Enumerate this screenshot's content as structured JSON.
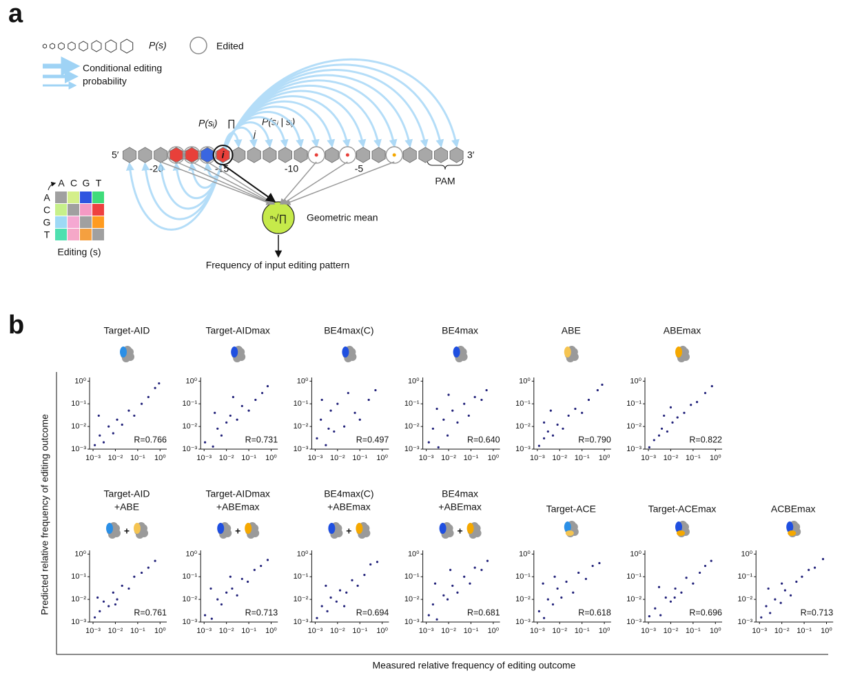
{
  "panel_a": {
    "label": "a",
    "legend_ps": "P(s)",
    "legend_edited": "Edited",
    "legend_arrow": [
      "Conditional editing",
      "probability"
    ],
    "formula": {
      "p_si": "P(sᵢ)",
      "prod": "∏",
      "prod_sub": "j",
      "p_sj_si": "P(sⱼ | sᵢ)"
    },
    "five_prime": "5′",
    "three_prime": "3′",
    "site": "i",
    "positions": [
      "-20",
      "-15",
      "-10",
      "-5"
    ],
    "pam": "PAM",
    "matrix": {
      "cols": [
        "A",
        "C",
        "G",
        "T"
      ],
      "rows": [
        "A",
        "C",
        "G",
        "T"
      ],
      "label": "Editing (s)"
    },
    "node_symbol": "ⁿ√∏",
    "node_label": "Geometric mean",
    "output": "Frequency of input editing pattern"
  },
  "panel_b": {
    "label": "b",
    "y_label": "Predicted  relative frequency of editing outcome",
    "x_label": "Measured relative frequency of editing outcome"
  },
  "chart_data": [
    {
      "type": "scatter",
      "title": [
        "Target-AID"
      ],
      "icons": [
        "#2b8fe6"
      ],
      "color": "#22227a",
      "log_scale": true,
      "annotation": "R=0.766",
      "x": [
        0.0012,
        0.002,
        0.003,
        0.005,
        0.008,
        0.012,
        0.02,
        0.04,
        0.07,
        0.15,
        0.3,
        0.6,
        0.9,
        0.0018
      ],
      "y": [
        0.0015,
        0.004,
        0.002,
        0.01,
        0.005,
        0.02,
        0.012,
        0.05,
        0.03,
        0.1,
        0.2,
        0.5,
        0.8,
        0.03
      ],
      "xlim": [
        0.0007,
        1.5
      ],
      "ylim": [
        0.001,
        1.1
      ],
      "xticks": [
        {
          "value": 0.001,
          "label": "10⁻³"
        },
        {
          "value": 0.01,
          "label": "10⁻²"
        },
        {
          "value": 0.1,
          "label": "10⁻¹"
        },
        {
          "value": 1,
          "label": "10⁰"
        }
      ],
      "yticks": [
        {
          "value": 0.001,
          "label": "10⁻³"
        },
        {
          "value": 0.01,
          "label": "10⁻²"
        },
        {
          "value": 0.1,
          "label": "10⁻¹"
        },
        {
          "value": 1,
          "label": "10⁰"
        }
      ]
    },
    {
      "type": "scatter",
      "title": [
        "Target-AIDmax"
      ],
      "icons": [
        "#1f4fe0"
      ],
      "color": "#22227a",
      "log_scale": true,
      "annotation": "R=0.731",
      "x": [
        0.0011,
        0.0025,
        0.004,
        0.006,
        0.01,
        0.015,
        0.03,
        0.05,
        0.1,
        0.2,
        0.4,
        0.7,
        0.003,
        0.02
      ],
      "y": [
        0.002,
        0.0013,
        0.008,
        0.004,
        0.015,
        0.03,
        0.02,
        0.08,
        0.05,
        0.15,
        0.3,
        0.6,
        0.04,
        0.2
      ],
      "xlim": [
        0.0007,
        1.5
      ],
      "ylim": [
        0.001,
        1.1
      ],
      "xticks": [
        {
          "value": 0.001,
          "label": "10⁻³"
        },
        {
          "value": 0.01,
          "label": "10⁻²"
        },
        {
          "value": 0.1,
          "label": "10⁻¹"
        },
        {
          "value": 1,
          "label": "10⁰"
        }
      ],
      "yticks": [
        {
          "value": 0.001,
          "label": "10⁻³"
        },
        {
          "value": 0.01,
          "label": "10⁻²"
        },
        {
          "value": 0.1,
          "label": "10⁻¹"
        },
        {
          "value": 1,
          "label": "10⁰"
        }
      ]
    },
    {
      "type": "scatter",
      "title": [
        "BE4max(C)"
      ],
      "icons": [
        "#1f4fe0"
      ],
      "color": "#22227a",
      "log_scale": true,
      "annotation": "R=0.497",
      "x": [
        0.0012,
        0.0018,
        0.003,
        0.005,
        0.007,
        0.01,
        0.02,
        0.03,
        0.06,
        0.1,
        0.25,
        0.5,
        0.002,
        0.004
      ],
      "y": [
        0.003,
        0.02,
        0.0015,
        0.05,
        0.006,
        0.1,
        0.01,
        0.3,
        0.04,
        0.02,
        0.15,
        0.4,
        0.15,
        0.008
      ],
      "xlim": [
        0.0007,
        1.5
      ],
      "ylim": [
        0.001,
        1.1
      ],
      "xticks": [
        {
          "value": 0.001,
          "label": "10⁻³"
        },
        {
          "value": 0.01,
          "label": "10⁻²"
        },
        {
          "value": 0.1,
          "label": "10⁻¹"
        },
        {
          "value": 1,
          "label": "10⁰"
        }
      ],
      "yticks": [
        {
          "value": 0.001,
          "label": "10⁻³"
        },
        {
          "value": 0.01,
          "label": "10⁻²"
        },
        {
          "value": 0.1,
          "label": "10⁻¹"
        },
        {
          "value": 1,
          "label": "10⁰"
        }
      ]
    },
    {
      "type": "scatter",
      "title": [
        "BE4max"
      ],
      "icons": [
        "#1f4fe0"
      ],
      "color": "#22227a",
      "log_scale": true,
      "annotation": "R=0.640",
      "x": [
        0.0013,
        0.002,
        0.0035,
        0.006,
        0.009,
        0.015,
        0.025,
        0.05,
        0.08,
        0.15,
        0.3,
        0.5,
        0.003,
        0.01
      ],
      "y": [
        0.002,
        0.008,
        0.0012,
        0.02,
        0.004,
        0.05,
        0.015,
        0.1,
        0.03,
        0.2,
        0.15,
        0.4,
        0.06,
        0.25
      ],
      "xlim": [
        0.0007,
        1.5
      ],
      "ylim": [
        0.001,
        1.1
      ],
      "xticks": [
        {
          "value": 0.001,
          "label": "10⁻³"
        },
        {
          "value": 0.01,
          "label": "10⁻²"
        },
        {
          "value": 0.1,
          "label": "10⁻¹"
        },
        {
          "value": 1,
          "label": "10⁰"
        }
      ],
      "yticks": [
        {
          "value": 0.001,
          "label": "10⁻³"
        },
        {
          "value": 0.01,
          "label": "10⁻²"
        },
        {
          "value": 0.1,
          "label": "10⁻¹"
        },
        {
          "value": 1,
          "label": "10⁰"
        }
      ]
    },
    {
      "type": "scatter",
      "title": [
        "ABE"
      ],
      "icons": [
        "#f5c451"
      ],
      "color": "#22227a",
      "log_scale": true,
      "annotation": "R=0.790",
      "x": [
        0.0012,
        0.002,
        0.003,
        0.005,
        0.008,
        0.014,
        0.025,
        0.05,
        0.1,
        0.2,
        0.5,
        0.8,
        0.004,
        0.002
      ],
      "y": [
        0.0014,
        0.003,
        0.006,
        0.004,
        0.012,
        0.008,
        0.03,
        0.06,
        0.04,
        0.15,
        0.4,
        0.7,
        0.05,
        0.015
      ],
      "xlim": [
        0.0007,
        1.5
      ],
      "ylim": [
        0.001,
        1.1
      ],
      "xticks": [
        {
          "value": 0.001,
          "label": "10⁻³"
        },
        {
          "value": 0.01,
          "label": "10⁻²"
        },
        {
          "value": 0.1,
          "label": "10⁻¹"
        },
        {
          "value": 1,
          "label": "10⁰"
        }
      ],
      "yticks": [
        {
          "value": 0.001,
          "label": "10⁻³"
        },
        {
          "value": 0.01,
          "label": "10⁻²"
        },
        {
          "value": 0.1,
          "label": "10⁻¹"
        },
        {
          "value": 1,
          "label": "10⁰"
        }
      ]
    },
    {
      "type": "scatter",
      "title": [
        "ABEmax"
      ],
      "icons": [
        "#f5a800"
      ],
      "color": "#22227a",
      "log_scale": true,
      "annotation": "R=0.822",
      "x": [
        0.0011,
        0.0018,
        0.003,
        0.004,
        0.007,
        0.012,
        0.02,
        0.04,
        0.08,
        0.15,
        0.35,
        0.7,
        0.005,
        0.01
      ],
      "y": [
        0.0012,
        0.0025,
        0.004,
        0.008,
        0.006,
        0.015,
        0.025,
        0.04,
        0.09,
        0.12,
        0.3,
        0.6,
        0.03,
        0.07
      ],
      "xlim": [
        0.0007,
        1.5
      ],
      "ylim": [
        0.001,
        1.1
      ],
      "xticks": [
        {
          "value": 0.001,
          "label": "10⁻³"
        },
        {
          "value": 0.01,
          "label": "10⁻²"
        },
        {
          "value": 0.1,
          "label": "10⁻¹"
        },
        {
          "value": 1,
          "label": "10⁰"
        }
      ],
      "yticks": [
        {
          "value": 0.001,
          "label": "10⁻³"
        },
        {
          "value": 0.01,
          "label": "10⁻²"
        },
        {
          "value": 0.1,
          "label": "10⁻¹"
        },
        {
          "value": 1,
          "label": "10⁰"
        }
      ]
    },
    {
      "type": "scatter",
      "title": [
        "Target-AID",
        "+ABE"
      ],
      "icons": [
        "#2b8fe6",
        "#f5c451"
      ],
      "icon_join": "+",
      "color": "#22227a",
      "log_scale": true,
      "annotation": "R=0.761",
      "x": [
        0.0012,
        0.002,
        0.003,
        0.005,
        0.008,
        0.012,
        0.02,
        0.04,
        0.07,
        0.15,
        0.3,
        0.6,
        0.0016,
        0.01
      ],
      "y": [
        0.0016,
        0.003,
        0.008,
        0.005,
        0.02,
        0.01,
        0.04,
        0.03,
        0.1,
        0.15,
        0.25,
        0.5,
        0.012,
        0.006
      ],
      "xlim": [
        0.0007,
        1.5
      ],
      "ylim": [
        0.001,
        1.1
      ],
      "xticks": [
        {
          "value": 0.001,
          "label": "10⁻³"
        },
        {
          "value": 0.01,
          "label": "10⁻²"
        },
        {
          "value": 0.1,
          "label": "10⁻¹"
        },
        {
          "value": 1,
          "label": "10⁰"
        }
      ],
      "yticks": [
        {
          "value": 0.001,
          "label": "10⁻³"
        },
        {
          "value": 0.01,
          "label": "10⁻²"
        },
        {
          "value": 0.1,
          "label": "10⁻¹"
        },
        {
          "value": 1,
          "label": "10⁰"
        }
      ]
    },
    {
      "type": "scatter",
      "title": [
        "Target-AIDmax",
        "+ABEmax"
      ],
      "icons": [
        "#1f4fe0",
        "#f5a800"
      ],
      "icon_join": "+",
      "color": "#22227a",
      "log_scale": true,
      "annotation": "R=0.713",
      "x": [
        0.0011,
        0.0022,
        0.004,
        0.006,
        0.01,
        0.018,
        0.03,
        0.05,
        0.09,
        0.18,
        0.35,
        0.7,
        0.002,
        0.015
      ],
      "y": [
        0.002,
        0.0014,
        0.01,
        0.006,
        0.02,
        0.03,
        0.015,
        0.08,
        0.06,
        0.2,
        0.3,
        0.55,
        0.03,
        0.1
      ],
      "xlim": [
        0.0007,
        1.5
      ],
      "ylim": [
        0.001,
        1.1
      ],
      "xticks": [
        {
          "value": 0.001,
          "label": "10⁻³"
        },
        {
          "value": 0.01,
          "label": "10⁻²"
        },
        {
          "value": 0.1,
          "label": "10⁻¹"
        },
        {
          "value": 1,
          "label": "10⁰"
        }
      ],
      "yticks": [
        {
          "value": 0.001,
          "label": "10⁻³"
        },
        {
          "value": 0.01,
          "label": "10⁻²"
        },
        {
          "value": 0.1,
          "label": "10⁻¹"
        },
        {
          "value": 1,
          "label": "10⁰"
        }
      ]
    },
    {
      "type": "scatter",
      "title": [
        "BE4max(C)",
        "+ABEmax"
      ],
      "icons": [
        "#1f4fe0",
        "#f5a800"
      ],
      "icon_join": "+",
      "color": "#22227a",
      "log_scale": true,
      "annotation": "R=0.694",
      "x": [
        0.0012,
        0.002,
        0.0035,
        0.005,
        0.009,
        0.013,
        0.025,
        0.045,
        0.08,
        0.16,
        0.3,
        0.6,
        0.003,
        0.02
      ],
      "y": [
        0.0015,
        0.005,
        0.003,
        0.012,
        0.008,
        0.025,
        0.02,
        0.07,
        0.04,
        0.12,
        0.35,
        0.45,
        0.04,
        0.005
      ],
      "xlim": [
        0.0007,
        1.5
      ],
      "ylim": [
        0.001,
        1.1
      ],
      "xticks": [
        {
          "value": 0.001,
          "label": "10⁻³"
        },
        {
          "value": 0.01,
          "label": "10⁻²"
        },
        {
          "value": 0.1,
          "label": "10⁻¹"
        },
        {
          "value": 1,
          "label": "10⁰"
        }
      ],
      "yticks": [
        {
          "value": 0.001,
          "label": "10⁻³"
        },
        {
          "value": 0.01,
          "label": "10⁻²"
        },
        {
          "value": 0.1,
          "label": "10⁻¹"
        },
        {
          "value": 1,
          "label": "10⁰"
        }
      ]
    },
    {
      "type": "scatter",
      "title": [
        "BE4max",
        "+ABEmax"
      ],
      "icons": [
        "#1f4fe0",
        "#f5a800"
      ],
      "icon_join": "+",
      "color": "#22227a",
      "log_scale": true,
      "annotation": "R=0.681",
      "x": [
        0.0013,
        0.002,
        0.003,
        0.006,
        0.009,
        0.015,
        0.025,
        0.05,
        0.09,
        0.15,
        0.3,
        0.55,
        0.0025,
        0.012
      ],
      "y": [
        0.002,
        0.006,
        0.0013,
        0.015,
        0.01,
        0.04,
        0.02,
        0.1,
        0.05,
        0.25,
        0.2,
        0.5,
        0.05,
        0.2
      ],
      "xlim": [
        0.0007,
        1.5
      ],
      "ylim": [
        0.001,
        1.1
      ],
      "xticks": [
        {
          "value": 0.001,
          "label": "10⁻³"
        },
        {
          "value": 0.01,
          "label": "10⁻²"
        },
        {
          "value": 0.1,
          "label": "10⁻¹"
        },
        {
          "value": 1,
          "label": "10⁰"
        }
      ],
      "yticks": [
        {
          "value": 0.001,
          "label": "10⁻³"
        },
        {
          "value": 0.01,
          "label": "10⁻²"
        },
        {
          "value": 0.1,
          "label": "10⁻¹"
        },
        {
          "value": 1,
          "label": "10⁰"
        }
      ]
    },
    {
      "type": "scatter",
      "title": [
        "Target-ACE"
      ],
      "icons": [
        "#2b8fe6",
        "#f5c451"
      ],
      "color": "#22227a",
      "log_scale": true,
      "annotation": "R=0.618",
      "x": [
        0.0012,
        0.002,
        0.003,
        0.005,
        0.008,
        0.012,
        0.02,
        0.04,
        0.07,
        0.15,
        0.3,
        0.6,
        0.0018,
        0.006
      ],
      "y": [
        0.003,
        0.0015,
        0.01,
        0.006,
        0.03,
        0.012,
        0.06,
        0.02,
        0.15,
        0.08,
        0.3,
        0.4,
        0.05,
        0.1
      ],
      "xlim": [
        0.0007,
        1.5
      ],
      "ylim": [
        0.001,
        1.1
      ],
      "xticks": [
        {
          "value": 0.001,
          "label": "10⁻³"
        },
        {
          "value": 0.01,
          "label": "10⁻²"
        },
        {
          "value": 0.1,
          "label": "10⁻¹"
        },
        {
          "value": 1,
          "label": "10⁰"
        }
      ],
      "yticks": [
        {
          "value": 0.001,
          "label": "10⁻³"
        },
        {
          "value": 0.01,
          "label": "10⁻²"
        },
        {
          "value": 0.1,
          "label": "10⁻¹"
        },
        {
          "value": 1,
          "label": "10⁰"
        }
      ]
    },
    {
      "type": "scatter",
      "title": [
        "Target-ACEmax"
      ],
      "icons": [
        "#1f4fe0",
        "#f5a800"
      ],
      "color": "#22227a",
      "log_scale": true,
      "annotation": "R=0.696",
      "x": [
        0.0011,
        0.002,
        0.0035,
        0.006,
        0.01,
        0.016,
        0.03,
        0.05,
        0.1,
        0.2,
        0.35,
        0.65,
        0.003,
        0.015
      ],
      "y": [
        0.0018,
        0.004,
        0.002,
        0.012,
        0.008,
        0.03,
        0.02,
        0.09,
        0.05,
        0.15,
        0.3,
        0.5,
        0.035,
        0.012
      ],
      "xlim": [
        0.0007,
        1.5
      ],
      "ylim": [
        0.001,
        1.1
      ],
      "xticks": [
        {
          "value": 0.001,
          "label": "10⁻³"
        },
        {
          "value": 0.01,
          "label": "10⁻²"
        },
        {
          "value": 0.1,
          "label": "10⁻¹"
        },
        {
          "value": 1,
          "label": "10⁰"
        }
      ],
      "yticks": [
        {
          "value": 0.001,
          "label": "10⁻³"
        },
        {
          "value": 0.01,
          "label": "10⁻²"
        },
        {
          "value": 0.1,
          "label": "10⁻¹"
        },
        {
          "value": 1,
          "label": "10⁰"
        }
      ]
    },
    {
      "type": "scatter",
      "title": [
        "ACBEmax"
      ],
      "icons": [
        "#1f4fe0",
        "#f5a800"
      ],
      "color": "#22227a",
      "log_scale": true,
      "annotation": "R=0.713",
      "x": [
        0.0012,
        0.002,
        0.003,
        0.005,
        0.009,
        0.014,
        0.025,
        0.045,
        0.08,
        0.16,
        0.3,
        0.7,
        0.0025,
        0.01
      ],
      "y": [
        0.0016,
        0.005,
        0.0025,
        0.01,
        0.007,
        0.025,
        0.015,
        0.06,
        0.1,
        0.2,
        0.25,
        0.6,
        0.03,
        0.05
      ],
      "xlim": [
        0.0007,
        1.5
      ],
      "ylim": [
        0.001,
        1.1
      ],
      "xticks": [
        {
          "value": 0.001,
          "label": "10⁻³"
        },
        {
          "value": 0.01,
          "label": "10⁻²"
        },
        {
          "value": 0.1,
          "label": "10⁻¹"
        },
        {
          "value": 1,
          "label": "10⁰"
        }
      ],
      "yticks": [
        {
          "value": 0.001,
          "label": "10⁻³"
        },
        {
          "value": 0.01,
          "label": "10⁻²"
        },
        {
          "value": 0.1,
          "label": "10⁻¹"
        },
        {
          "value": 1,
          "label": "10⁰"
        }
      ]
    }
  ]
}
